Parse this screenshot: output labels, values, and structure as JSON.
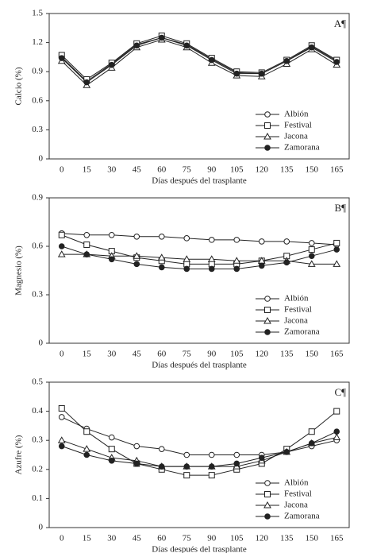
{
  "chart_data": [
    {
      "type": "line",
      "panel_label": "A¶",
      "x_label": "Días después del trasplante",
      "y_label": "Calcio (%)",
      "categories": [
        "0",
        "15",
        "30",
        "45",
        "60",
        "75",
        "90",
        "105",
        "120",
        "135",
        "150",
        "165"
      ],
      "ylim": [
        0,
        1.5
      ],
      "yticks": [
        0,
        0.3,
        0.6,
        0.9,
        1.2,
        1.5
      ],
      "grid": false,
      "legend": "lower right",
      "series": [
        {
          "name": "Albión",
          "color": "#222222",
          "marker": "circle",
          "values": [
            1.05,
            0.8,
            0.98,
            1.18,
            1.25,
            1.18,
            1.03,
            0.89,
            0.88,
            1.01,
            1.16,
            1.01
          ]
        },
        {
          "name": "Festival",
          "color": "#222222",
          "marker": "square",
          "values": [
            1.07,
            0.82,
            0.99,
            1.19,
            1.27,
            1.19,
            1.04,
            0.9,
            0.89,
            1.02,
            1.17,
            1.02
          ]
        },
        {
          "name": "Jacona",
          "color": "#222222",
          "marker": "triangle",
          "values": [
            1.01,
            0.76,
            0.94,
            1.15,
            1.23,
            1.15,
            0.99,
            0.86,
            0.85,
            0.98,
            1.13,
            0.97
          ]
        },
        {
          "name": "Zamorana",
          "color": "#222222",
          "marker": "filled-circle",
          "values": [
            1.04,
            0.79,
            0.97,
            1.17,
            1.25,
            1.17,
            1.02,
            0.88,
            0.88,
            1.01,
            1.15,
            1.0
          ]
        }
      ]
    },
    {
      "type": "line",
      "panel_label": "B¶",
      "x_label": "Días después del trasplante",
      "y_label": "Magnesio (%)",
      "categories": [
        "0",
        "15",
        "30",
        "45",
        "60",
        "75",
        "90",
        "105",
        "120",
        "135",
        "150",
        "165"
      ],
      "ylim": [
        0,
        0.9
      ],
      "yticks": [
        0,
        0.3,
        0.6,
        0.9
      ],
      "grid": false,
      "legend": "lower right",
      "series": [
        {
          "name": "Albión",
          "color": "#222222",
          "marker": "circle",
          "values": [
            0.68,
            0.67,
            0.67,
            0.66,
            0.66,
            0.65,
            0.64,
            0.64,
            0.63,
            0.63,
            0.62,
            0.61
          ]
        },
        {
          "name": "Festival",
          "color": "#222222",
          "marker": "square",
          "values": [
            0.67,
            0.61,
            0.57,
            0.53,
            0.51,
            0.49,
            0.49,
            0.49,
            0.51,
            0.54,
            0.58,
            0.62
          ]
        },
        {
          "name": "Jacona",
          "color": "#222222",
          "marker": "triangle",
          "values": [
            0.55,
            0.55,
            0.54,
            0.54,
            0.53,
            0.52,
            0.52,
            0.51,
            0.51,
            0.51,
            0.49,
            0.49
          ]
        },
        {
          "name": "Zamorana",
          "color": "#222222",
          "marker": "filled-circle",
          "values": [
            0.6,
            0.55,
            0.52,
            0.49,
            0.47,
            0.46,
            0.46,
            0.46,
            0.48,
            0.5,
            0.54,
            0.58
          ]
        }
      ]
    },
    {
      "type": "line",
      "panel_label": "C¶",
      "x_label": "Días después del trasplante",
      "y_label": "Azufre (%)",
      "categories": [
        "0",
        "15",
        "30",
        "45",
        "60",
        "75",
        "90",
        "105",
        "120",
        "135",
        "150",
        "165"
      ],
      "ylim": [
        0,
        0.5
      ],
      "yticks": [
        0,
        0.1,
        0.2,
        0.3,
        0.4,
        0.5
      ],
      "grid": false,
      "legend": "lower right",
      "series": [
        {
          "name": "Albión",
          "color": "#222222",
          "marker": "circle",
          "values": [
            0.38,
            0.34,
            0.31,
            0.28,
            0.27,
            0.25,
            0.25,
            0.25,
            0.25,
            0.26,
            0.28,
            0.3
          ]
        },
        {
          "name": "Festival",
          "color": "#222222",
          "marker": "square",
          "values": [
            0.41,
            0.33,
            0.27,
            0.22,
            0.2,
            0.18,
            0.18,
            0.2,
            0.22,
            0.27,
            0.33,
            0.4
          ]
        },
        {
          "name": "Jacona",
          "color": "#222222",
          "marker": "triangle",
          "values": [
            0.3,
            0.27,
            0.24,
            0.23,
            0.21,
            0.21,
            0.21,
            0.21,
            0.23,
            0.26,
            0.29,
            0.31
          ]
        },
        {
          "name": "Zamorana",
          "color": "#222222",
          "marker": "filled-circle",
          "values": [
            0.28,
            0.25,
            0.23,
            0.22,
            0.21,
            0.21,
            0.21,
            0.22,
            0.24,
            0.26,
            0.29,
            0.33
          ]
        }
      ]
    }
  ]
}
